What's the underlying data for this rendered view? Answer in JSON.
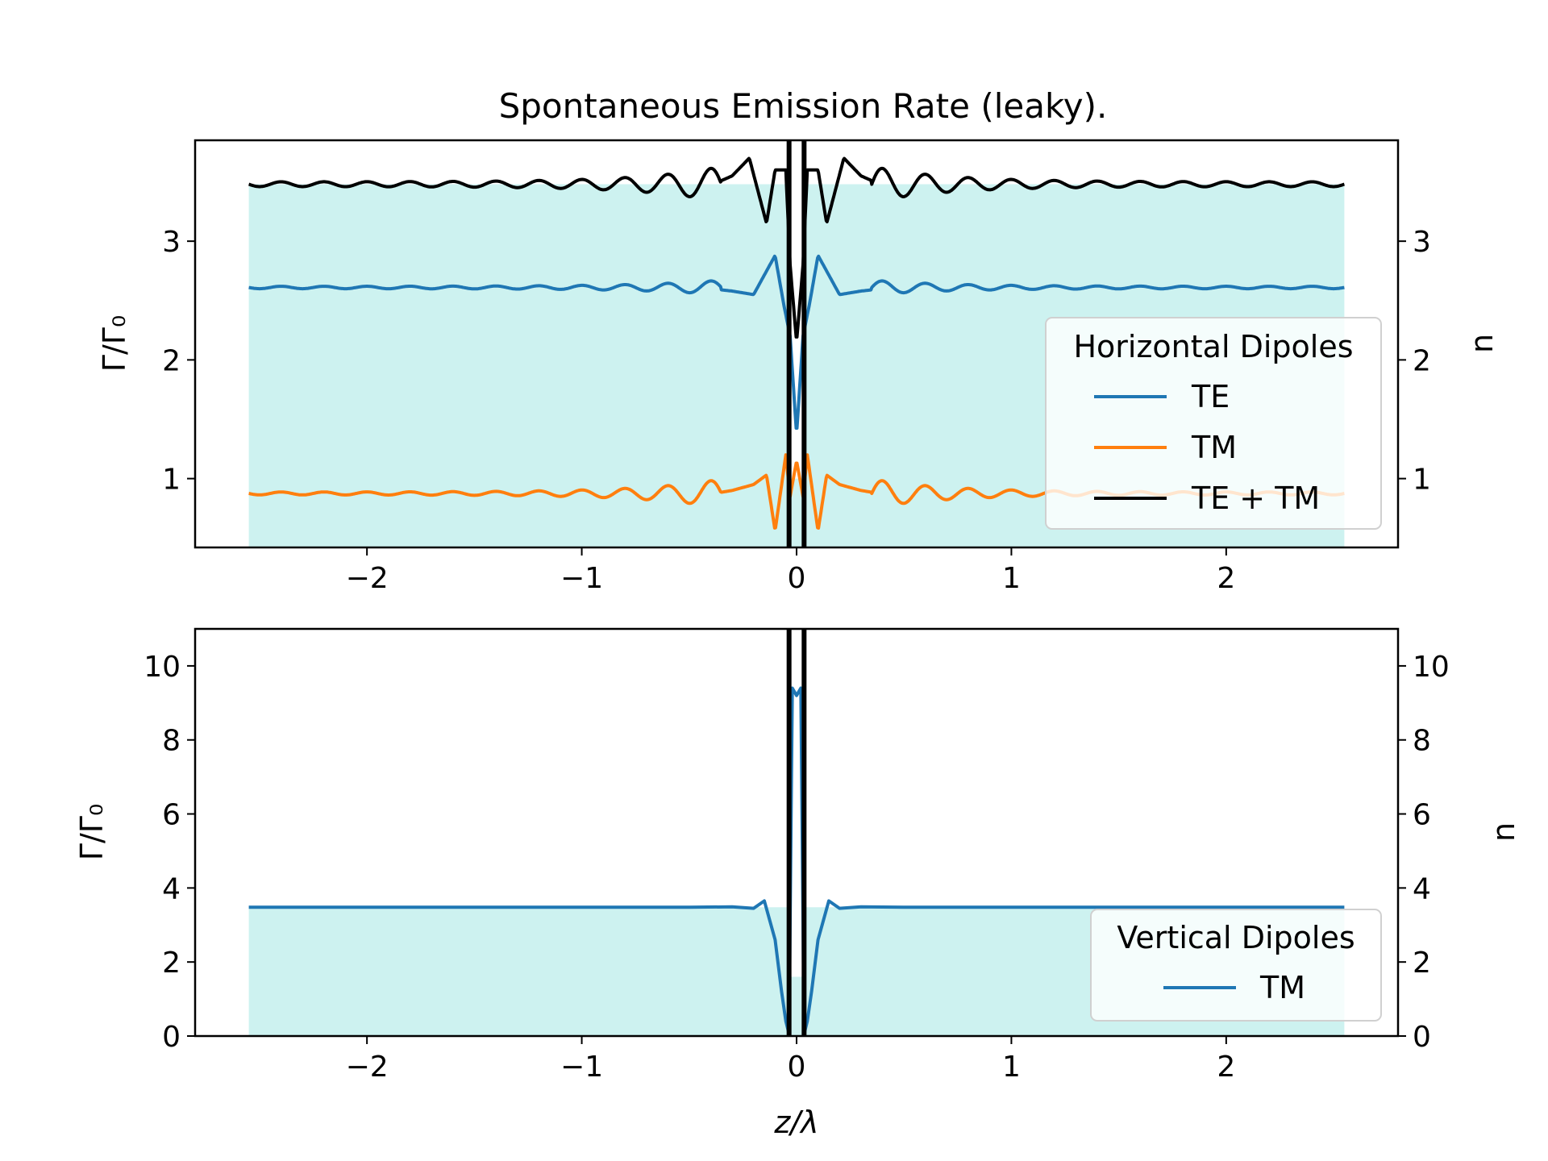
{
  "figure": {
    "title": "Spontaneous Emission Rate (leaky)."
  },
  "colors": {
    "te": "#1f77b4",
    "tm": "#ff7f0e",
    "sum": "#000000",
    "index_fill": "#cdf2f0",
    "legend_bg": "#ffffff"
  },
  "chart_data": [
    {
      "type": "line",
      "title": "Spontaneous Emission Rate (leaky).",
      "xlabel": "",
      "ylabel": "Γ/Γ₀",
      "ylabel_right": "n",
      "xlim": [
        -2.8,
        2.8
      ],
      "ylim": [
        0.42,
        3.85
      ],
      "x_ticks": [
        -2,
        -1,
        0,
        1,
        2
      ],
      "x_tick_labels": [
        "−2",
        "−1",
        "0",
        "1",
        "2"
      ],
      "y_ticks": [
        1,
        2,
        3
      ],
      "y_tick_labels": [
        "1",
        "2",
        "3"
      ],
      "y_ticks_right": [
        1,
        2,
        3
      ],
      "y_tick_labels_right": [
        "1",
        "2",
        "3"
      ],
      "legend": {
        "title": "Horizontal Dipoles",
        "position": "right",
        "entries": [
          "TE",
          "TM",
          "TE + TM"
        ]
      },
      "refractive_index_profile": {
        "x": [
          -2.55,
          -0.04,
          -0.04,
          0.04,
          0.04,
          2.55
        ],
        "n": [
          3.48,
          3.48,
          1.0,
          1.0,
          3.48,
          3.48
        ],
        "gap_edges": [
          -0.035,
          0.035
        ]
      },
      "series": [
        {
          "name": "TE",
          "color": "#1f77b4",
          "x": [
            -2.55,
            -1.5,
            -1.0,
            -0.6,
            -0.4,
            -0.3,
            -0.2,
            -0.1,
            -0.06,
            -0.03,
            0.0,
            0.03,
            0.06,
            0.1,
            0.2,
            0.3,
            0.4,
            0.6,
            1.0,
            1.5,
            2.55
          ],
          "y": [
            2.61,
            2.62,
            2.61,
            2.62,
            2.6,
            2.58,
            2.55,
            2.88,
            2.47,
            2.2,
            1.37,
            2.2,
            2.47,
            2.88,
            2.55,
            2.58,
            2.6,
            2.62,
            2.61,
            2.62,
            2.61
          ],
          "oscillation": {
            "base": 2.61,
            "amplitude_far": 0.01,
            "amplitude_near": 0.09,
            "period": 0.1
          }
        },
        {
          "name": "TM",
          "color": "#ff7f0e",
          "x": [
            -2.55,
            -1.5,
            -1.0,
            -0.6,
            -0.4,
            -0.3,
            -0.2,
            -0.14,
            -0.1,
            -0.05,
            -0.03,
            0.0,
            0.03,
            0.05,
            0.1,
            0.14,
            0.2,
            0.3,
            0.4,
            0.6,
            1.0,
            1.5,
            2.55
          ],
          "y": [
            0.87,
            0.88,
            0.87,
            0.88,
            0.87,
            0.9,
            0.95,
            1.03,
            0.56,
            1.2,
            0.85,
            1.15,
            0.85,
            1.2,
            0.56,
            1.03,
            0.95,
            0.9,
            0.87,
            0.88,
            0.87,
            0.88,
            0.88
          ],
          "oscillation": {
            "base": 0.875,
            "amplitude_far": 0.012,
            "amplitude_near": 0.18,
            "period": 0.1
          }
        },
        {
          "name": "TE + TM",
          "color": "#000000",
          "x": [
            -2.55,
            -1.5,
            -1.0,
            -0.6,
            -0.4,
            -0.3,
            -0.22,
            -0.14,
            -0.1,
            -0.05,
            -0.03,
            0.0,
            0.03,
            0.05,
            0.1,
            0.14,
            0.22,
            0.3,
            0.4,
            0.6,
            1.0,
            1.5,
            2.55
          ],
          "y": [
            3.49,
            3.49,
            3.48,
            3.49,
            3.47,
            3.55,
            3.7,
            3.15,
            3.6,
            3.6,
            2.8,
            2.15,
            2.8,
            3.6,
            3.6,
            3.15,
            3.7,
            3.55,
            3.47,
            3.49,
            3.48,
            3.49,
            3.49
          ],
          "oscillation": {
            "base": 3.48,
            "amplitude_far": 0.02,
            "amplitude_near": 0.22,
            "period": 0.1
          }
        }
      ]
    },
    {
      "type": "line",
      "title": "",
      "xlabel": "z/λ",
      "ylabel": "Γ/Γ₀",
      "ylabel_right": "n",
      "xlim": [
        -2.8,
        2.8
      ],
      "ylim": [
        0,
        11
      ],
      "x_ticks": [
        -2,
        -1,
        0,
        1,
        2
      ],
      "x_tick_labels": [
        "−2",
        "−1",
        "0",
        "1",
        "2"
      ],
      "y_ticks": [
        0,
        2,
        4,
        6,
        8,
        10
      ],
      "y_tick_labels": [
        "0",
        "2",
        "4",
        "6",
        "8",
        "10"
      ],
      "y_ticks_right": [
        0,
        2,
        4,
        6,
        8,
        10
      ],
      "y_tick_labels_right": [
        "0",
        "2",
        "4",
        "6",
        "8",
        "10"
      ],
      "legend": {
        "title": "Vertical Dipoles",
        "position": "lower right",
        "entries": [
          "TM"
        ]
      },
      "refractive_index_profile": {
        "x": [
          -2.55,
          -0.04,
          -0.04,
          0.04,
          0.04,
          2.55
        ],
        "n": [
          3.48,
          3.48,
          1.6,
          1.6,
          3.48,
          3.48
        ],
        "gap_edges": [
          -0.035,
          0.035
        ]
      },
      "series": [
        {
          "name": "TM",
          "color": "#1f77b4",
          "x": [
            -2.55,
            -1.0,
            -0.5,
            -0.3,
            -0.2,
            -0.15,
            -0.1,
            -0.07,
            -0.05,
            -0.035,
            -0.02,
            0.0,
            0.02,
            0.035,
            0.05,
            0.07,
            0.1,
            0.15,
            0.2,
            0.3,
            0.5,
            1.0,
            2.55
          ],
          "y": [
            3.48,
            3.48,
            3.48,
            3.49,
            3.45,
            3.65,
            2.6,
            1.2,
            0.4,
            0.05,
            9.4,
            9.2,
            9.4,
            0.05,
            0.4,
            1.2,
            2.6,
            3.65,
            3.45,
            3.49,
            3.48,
            3.48,
            3.48
          ]
        }
      ]
    }
  ]
}
